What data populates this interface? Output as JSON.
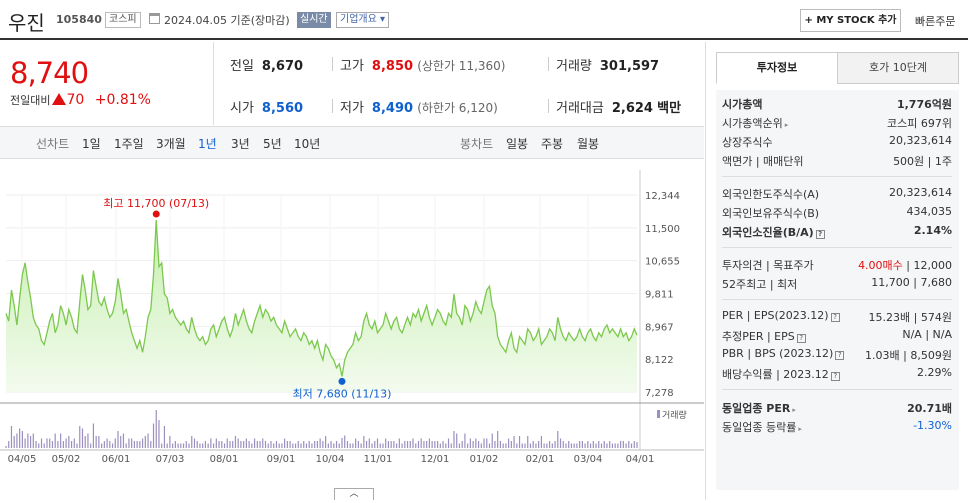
{
  "header": {
    "name": "우진",
    "code": "105840",
    "market_tag": "코스피",
    "date_text": "2024.04.05 기준(장마감)",
    "realtime": "실시간",
    "company_info": "기업개요 ▾",
    "mystock": "+ MY STOCK 추가",
    "quick_order": "빠른주문"
  },
  "price": {
    "current": "8,740",
    "change_label": "전일대비",
    "change": "70",
    "change_pct": "+0.81%"
  },
  "stats": {
    "prev_close_label": "전일",
    "prev_close": "8,670",
    "high_label": "고가",
    "high": "8,850",
    "upper_limit": "(상한가 11,360)",
    "volume_label": "거래량",
    "volume": "301,597",
    "open_label": "시가",
    "open": "8,560",
    "low_label": "저가",
    "low": "8,490",
    "lower_limit": "(하한가 6,120)",
    "amount_label": "거래대금",
    "amount": "2,624",
    "amount_unit": "백만"
  },
  "periods": {
    "line_chart": "선차트",
    "items": [
      "1일",
      "1주일",
      "3개월",
      "1년",
      "3년",
      "5년",
      "10년"
    ],
    "active": "1년",
    "candle_chart": "봉차트",
    "candle_items": [
      "일봉",
      "주봉",
      "월봉"
    ]
  },
  "chart_data": {
    "type": "area",
    "y_ticks": [
      "12,344",
      "11,500",
      "10,655",
      "9,811",
      "8,967",
      "8,122",
      "7,278"
    ],
    "ylim": [
      7278,
      12344
    ],
    "x_ticks": [
      "04/05",
      "05/02",
      "06/01",
      "07/03",
      "08/01",
      "09/01",
      "10/04",
      "11/01",
      "12/01",
      "01/02",
      "02/01",
      "03/04",
      "04/01"
    ],
    "max_label": "최고 11,700 (07/13)",
    "min_label": "최저 7,680 (11/13)",
    "volume_label": "거래량",
    "series": [
      {
        "values": [
          9300,
          9100,
          9900,
          9500,
          9000,
          9700,
          10300,
          10600,
          10100,
          9700,
          9200,
          9000,
          8900,
          8600,
          8500,
          8800,
          9100,
          9300,
          8800,
          9000,
          9500,
          9300,
          9000,
          9400,
          9200,
          8900,
          8800,
          9600,
          10300,
          9900,
          9400,
          9500,
          10400,
          10000,
          9600,
          9500,
          9700,
          9400,
          9200,
          9300,
          9600,
          10200,
          9800,
          9300,
          9400,
          9100,
          8800,
          8600,
          8400,
          8600,
          8300,
          8700,
          9200,
          9400,
          10300,
          11700,
          10500,
          10600,
          9800,
          9700,
          9300,
          9400,
          9200,
          9100,
          9000,
          9100,
          8900,
          8800,
          9200,
          8900,
          8700,
          8600,
          8700,
          8500,
          8600,
          8900,
          9000,
          8700,
          8900,
          9100,
          9200,
          8900,
          8700,
          8900,
          9300,
          9000,
          9200,
          9400,
          9100,
          8900,
          8800,
          9100,
          9300,
          9500,
          9200,
          9400,
          9300,
          9100,
          9200,
          9000,
          8900,
          8800,
          9100,
          8900,
          8700,
          8800,
          8900,
          8700,
          8600,
          8800,
          8700,
          8500,
          8600,
          8400,
          8600,
          8300,
          8100,
          8500,
          8400,
          8200,
          8100,
          7900,
          8000,
          7680,
          8100,
          8300,
          8400,
          8500,
          8800,
          8600,
          8700,
          9100,
          9300,
          9000,
          8900,
          9100,
          8800,
          8900,
          9000,
          9300,
          9100,
          8900,
          9100,
          9200,
          8900,
          8800,
          9000,
          9200,
          9000,
          9300,
          9200,
          9400,
          9100,
          9300,
          9500,
          9200,
          9000,
          9200,
          9400,
          9300,
          9100,
          9000,
          9300,
          9200,
          9800,
          9300,
          9200,
          9000,
          9500,
          9400,
          9100,
          9300,
          9600,
          9400,
          9300,
          9600,
          9900,
          10000,
          9500,
          9300,
          8700,
          8500,
          8400,
          8300,
          8600,
          8800,
          8400,
          8300,
          8700,
          8600,
          8500,
          8900,
          8800,
          8600,
          8700,
          8900,
          8500,
          8600,
          8700,
          8900,
          8800,
          8600,
          9200,
          8900,
          8700,
          8600,
          8800,
          8700,
          8600,
          8700,
          8900,
          8700,
          8600,
          8800,
          8900,
          8700,
          8600,
          8800,
          8700,
          8900,
          9000,
          8800,
          8900,
          8800,
          8700,
          8900,
          8700,
          8800,
          8600,
          8700,
          8900,
          8740
        ]
      }
    ]
  },
  "sidebar": {
    "tab_invest": "투자정보",
    "tab_orderbook": "호가 10단계",
    "rows1": [
      {
        "k": "시가총액",
        "v": "1,776억원"
      },
      {
        "k": "시가총액순위",
        "v": "코스피 697위"
      },
      {
        "k": "상장주식수",
        "v": "20,323,614"
      },
      {
        "k": "액면가 | 매매단위",
        "v": "500원 | 1주"
      }
    ],
    "rows2": [
      {
        "k": "외국인한도주식수(A)",
        "v": "20,323,614"
      },
      {
        "k": "외국인보유주식수(B)",
        "v": "434,035"
      },
      {
        "k": "외국인소진율(B/A)",
        "v": "2.14%"
      }
    ],
    "rows3": [
      {
        "k": "투자의견 | 목표주가",
        "v1": "4.00매수",
        "v2": "12,000"
      },
      {
        "k": "52주최고 | 최저",
        "v1": "11,700",
        "v2": "7,680"
      }
    ],
    "rows4": [
      {
        "k": "PER | EPS(2023.12)",
        "v1": "15.23배",
        "v2": "574원"
      },
      {
        "k": "추정PER | EPS",
        "v1": "N/A",
        "v2": "N/A"
      },
      {
        "k": "PBR | BPS (2023.12)",
        "v1": "1.03배",
        "v2": "8,509원"
      },
      {
        "k": "배당수익률 | 2023.12",
        "v1": "2.29%"
      }
    ],
    "rows5": [
      {
        "k": "동일업종 PER",
        "v": "20.71배"
      },
      {
        "k": "동일업종 등락률",
        "v": "-1.30%"
      }
    ]
  }
}
